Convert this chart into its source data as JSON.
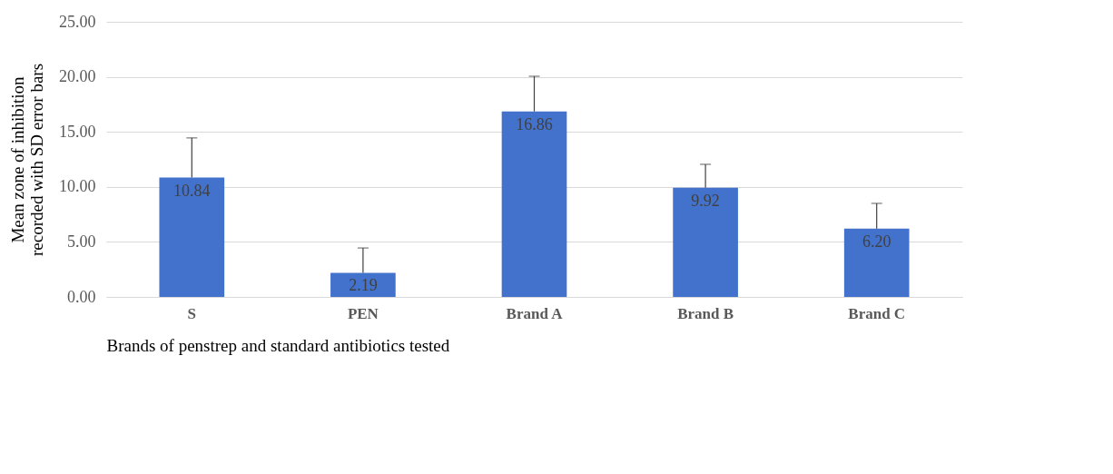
{
  "chart_data": {
    "type": "bar",
    "categories": [
      "S",
      "PEN",
      "Brand A",
      "Brand B",
      "Brand C"
    ],
    "values": [
      10.84,
      2.19,
      16.86,
      9.92,
      6.2
    ],
    "value_labels": [
      "10.84",
      "2.19",
      "16.86",
      "9.92",
      "6.20"
    ],
    "errors": [
      [
        10.84,
        14.45
      ],
      [
        2.19,
        4.45
      ],
      [
        16.86,
        20.05
      ],
      [
        9.92,
        12.05
      ],
      [
        6.2,
        8.5
      ]
    ],
    "color": "#4372cc",
    "xlabel": "Brands of penstrep and standard antibiotics tested",
    "ylabel": "Mean zone of inhibition recorded with SD error bars",
    "ylim": [
      0,
      25
    ],
    "yticks": [
      {
        "value": 0,
        "label": "0.00"
      },
      {
        "value": 5,
        "label": "5.00"
      },
      {
        "value": 10,
        "label": "10.00"
      },
      {
        "value": 15,
        "label": "15.00"
      },
      {
        "value": 20,
        "label": "20.00"
      },
      {
        "value": 25,
        "label": "25.00"
      }
    ],
    "grid": "y"
  }
}
